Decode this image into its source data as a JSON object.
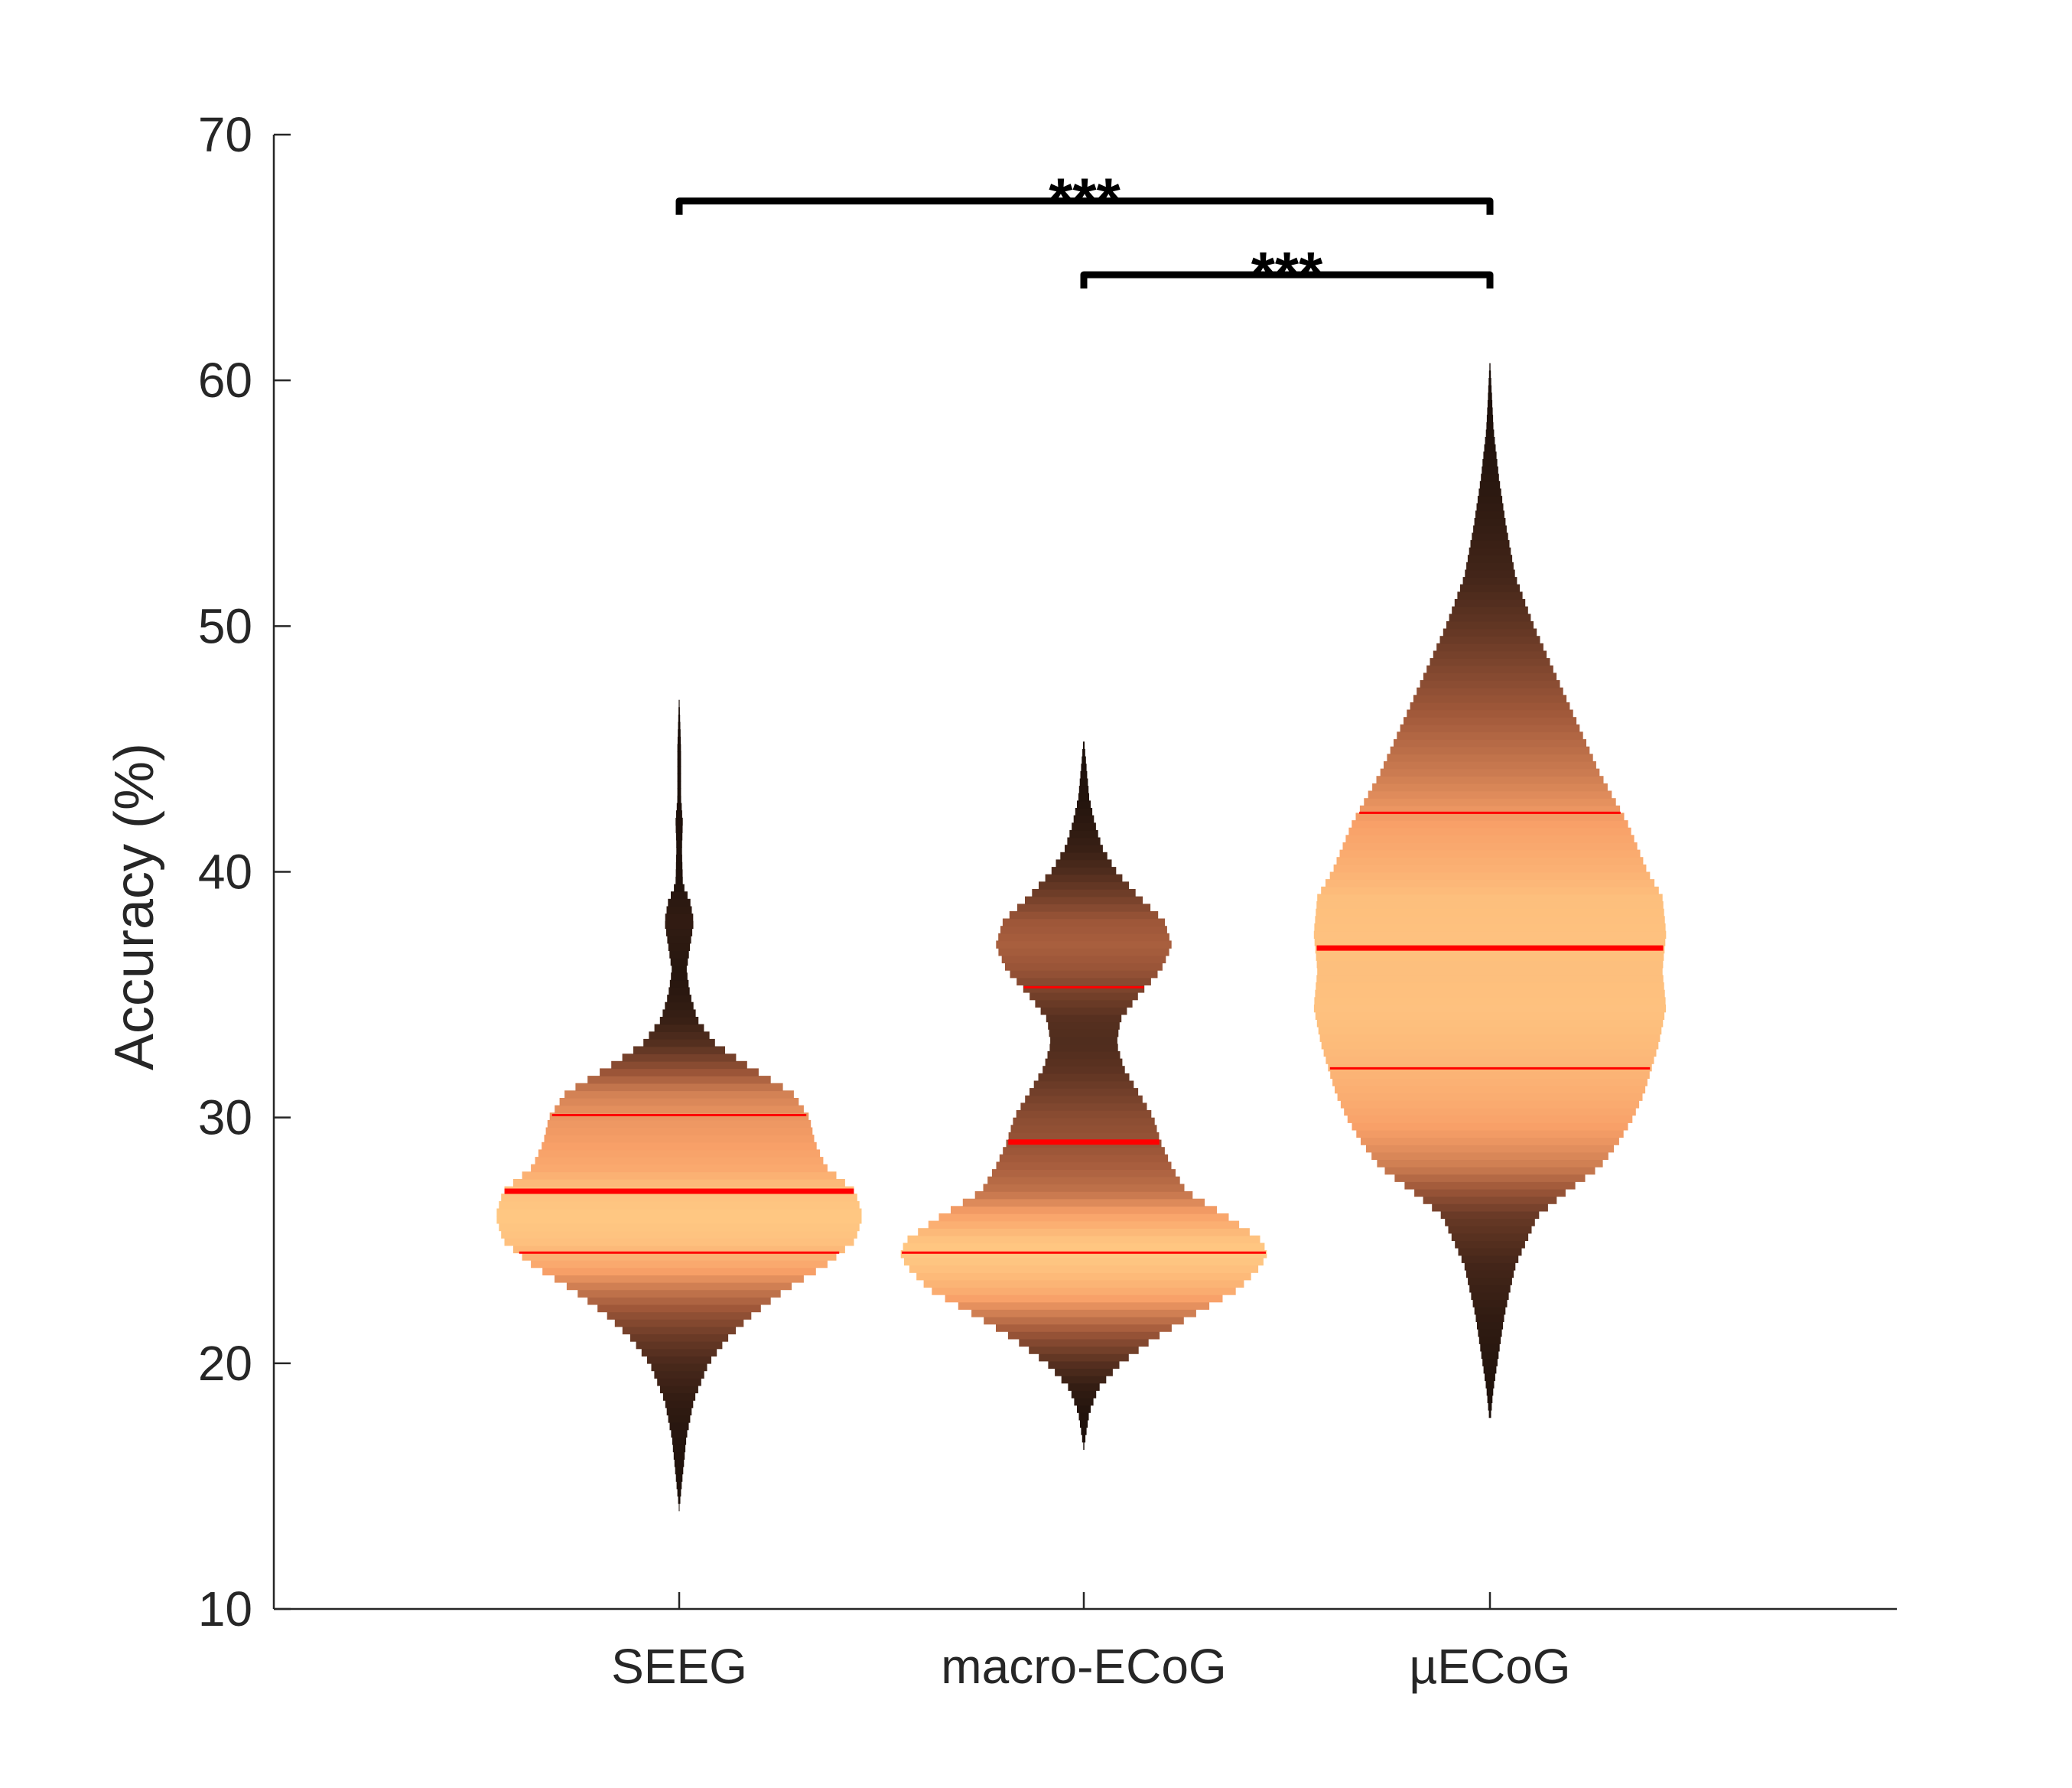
{
  "chart_data": {
    "type": "violin",
    "title": "",
    "xlabel": "",
    "ylabel": "Accuracy (%)",
    "ylim": [
      10,
      70
    ],
    "yticks": [
      10,
      20,
      30,
      40,
      50,
      60,
      70
    ],
    "categories": [
      "SEEG",
      "macro-ECoG",
      "µECoG"
    ],
    "grid": false,
    "colors": {
      "low_density": "#1a0f0a",
      "mid_density": "#a0583a",
      "high_density": "#ffc883",
      "quartile_line": "#ff0000",
      "bracket": "#000000",
      "axis": "#262626"
    },
    "series": [
      {
        "category": "SEEG",
        "median": 27.0,
        "q1": 24.5,
        "q3": 30.1,
        "min": 14.0,
        "max": 47.5,
        "profile": [
          [
            14.0,
            0.0
          ],
          [
            15.5,
            0.02
          ],
          [
            17.0,
            0.04
          ],
          [
            18.5,
            0.08
          ],
          [
            20.0,
            0.16
          ],
          [
            21.0,
            0.26
          ],
          [
            22.0,
            0.4
          ],
          [
            23.0,
            0.58
          ],
          [
            24.0,
            0.8
          ],
          [
            25.0,
            0.96
          ],
          [
            26.0,
            1.0
          ],
          [
            27.0,
            0.96
          ],
          [
            28.0,
            0.8
          ],
          [
            29.0,
            0.74
          ],
          [
            30.0,
            0.71
          ],
          [
            31.0,
            0.62
          ],
          [
            32.0,
            0.4
          ],
          [
            33.0,
            0.2
          ],
          [
            34.0,
            0.1
          ],
          [
            35.0,
            0.06
          ],
          [
            36.0,
            0.04
          ],
          [
            37.0,
            0.06
          ],
          [
            38.0,
            0.08
          ],
          [
            38.8,
            0.06
          ],
          [
            39.5,
            0.02
          ],
          [
            41.0,
            0.015
          ],
          [
            42.0,
            0.02
          ],
          [
            43.0,
            0.01
          ],
          [
            45.0,
            0.01
          ],
          [
            47.5,
            0.0
          ]
        ]
      },
      {
        "category": "macro-ECoG",
        "median": 29.0,
        "q1": 24.5,
        "q3": 35.3,
        "min": 16.5,
        "max": 45.5,
        "profile": [
          [
            16.5,
            0.0
          ],
          [
            18.0,
            0.03
          ],
          [
            19.0,
            0.08
          ],
          [
            20.0,
            0.2
          ],
          [
            21.0,
            0.38
          ],
          [
            22.0,
            0.6
          ],
          [
            23.0,
            0.84
          ],
          [
            24.0,
            0.97
          ],
          [
            24.5,
            1.0
          ],
          [
            25.0,
            0.97
          ],
          [
            26.0,
            0.78
          ],
          [
            27.0,
            0.56
          ],
          [
            28.0,
            0.48
          ],
          [
            29.0,
            0.42
          ],
          [
            30.0,
            0.38
          ],
          [
            31.0,
            0.3
          ],
          [
            32.0,
            0.22
          ],
          [
            33.0,
            0.18
          ],
          [
            34.0,
            0.2
          ],
          [
            35.0,
            0.3
          ],
          [
            36.0,
            0.42
          ],
          [
            37.0,
            0.48
          ],
          [
            38.0,
            0.44
          ],
          [
            39.0,
            0.3
          ],
          [
            40.0,
            0.18
          ],
          [
            41.0,
            0.1
          ],
          [
            42.0,
            0.06
          ],
          [
            43.0,
            0.03
          ],
          [
            45.5,
            0.0
          ]
        ]
      },
      {
        "category": "µECoG",
        "median": 36.9,
        "q1": 32.0,
        "q3": 42.4,
        "min": 17.5,
        "max": 61.0,
        "profile": [
          [
            17.5,
            0.0
          ],
          [
            19.0,
            0.02
          ],
          [
            20.0,
            0.04
          ],
          [
            22.0,
            0.08
          ],
          [
            24.0,
            0.14
          ],
          [
            26.0,
            0.26
          ],
          [
            27.0,
            0.42
          ],
          [
            28.0,
            0.6
          ],
          [
            29.0,
            0.7
          ],
          [
            30.0,
            0.78
          ],
          [
            31.0,
            0.84
          ],
          [
            33.0,
            0.92
          ],
          [
            34.5,
            0.96
          ],
          [
            36.0,
            0.94
          ],
          [
            37.5,
            0.96
          ],
          [
            39.0,
            0.94
          ],
          [
            40.0,
            0.86
          ],
          [
            42.0,
            0.75
          ],
          [
            44.0,
            0.6
          ],
          [
            46.0,
            0.48
          ],
          [
            48.0,
            0.36
          ],
          [
            50.0,
            0.24
          ],
          [
            52.0,
            0.14
          ],
          [
            54.0,
            0.09
          ],
          [
            56.0,
            0.05
          ],
          [
            58.0,
            0.02
          ],
          [
            61.0,
            0.0
          ]
        ]
      }
    ],
    "significance": [
      {
        "from": "SEEG",
        "to": "µECoG",
        "y": 67.3,
        "label": "***"
      },
      {
        "from": "macro-ECoG",
        "to": "µECoG",
        "y": 64.3,
        "label": "***"
      }
    ]
  }
}
